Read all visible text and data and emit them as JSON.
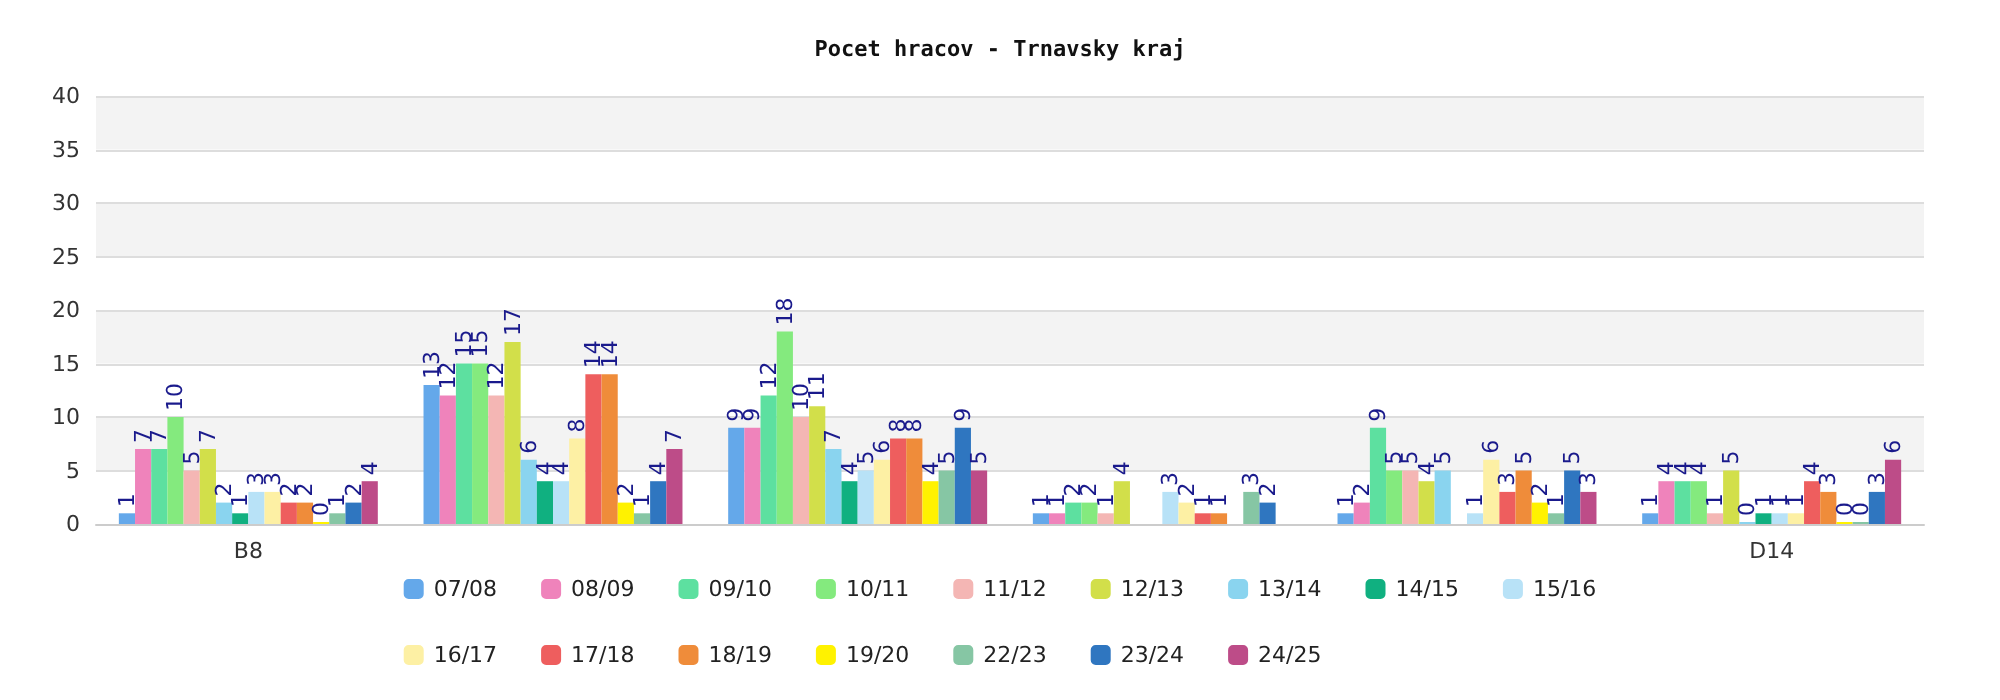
{
  "chart_data": {
    "type": "bar",
    "title": "Pocet hracov - Trnavsky kraj",
    "categories": [
      "B8",
      null,
      null,
      null,
      null,
      "D14"
    ],
    "ylim": [
      0,
      40
    ],
    "yticks": [
      0,
      5,
      10,
      15,
      20,
      25,
      30,
      35,
      40
    ],
    "grid": "y",
    "legend": "bottom",
    "data_labels": true,
    "series": [
      {
        "name": "07/08",
        "color": "#64a8ea",
        "values": [
          1,
          13,
          9,
          1,
          1,
          1
        ]
      },
      {
        "name": "08/09",
        "color": "#ef83bb",
        "values": [
          7,
          12,
          9,
          1,
          2,
          4
        ]
      },
      {
        "name": "09/10",
        "color": "#5de0a0",
        "values": [
          7,
          15,
          12,
          2,
          9,
          4
        ]
      },
      {
        "name": "10/11",
        "color": "#84ea7e",
        "values": [
          10,
          15,
          18,
          2,
          5,
          4
        ]
      },
      {
        "name": "11/12",
        "color": "#f4b6b4",
        "values": [
          5,
          12,
          10,
          1,
          5,
          1
        ]
      },
      {
        "name": "12/13",
        "color": "#d2df4a",
        "values": [
          7,
          17,
          11,
          4,
          4,
          5
        ]
      },
      {
        "name": "13/14",
        "color": "#8ad4ef",
        "values": [
          2,
          6,
          7,
          null,
          5,
          0
        ]
      },
      {
        "name": "14/15",
        "color": "#10b080",
        "values": [
          1,
          4,
          4,
          null,
          null,
          1
        ]
      },
      {
        "name": "15/16",
        "color": "#b8e2f7",
        "values": [
          3,
          4,
          5,
          3,
          1,
          1
        ]
      },
      {
        "name": "16/17",
        "color": "#fdf0a4",
        "values": [
          3,
          8,
          6,
          2,
          6,
          1
        ]
      },
      {
        "name": "17/18",
        "color": "#ee5e5e",
        "values": [
          2,
          14,
          8,
          1,
          3,
          4
        ]
      },
      {
        "name": "18/19",
        "color": "#ef8c3a",
        "values": [
          2,
          14,
          8,
          1,
          5,
          3
        ]
      },
      {
        "name": "19/20",
        "color": "#fff200",
        "values": [
          0,
          2,
          4,
          null,
          2,
          0
        ]
      },
      {
        "name": "22/23",
        "color": "#86c6a4",
        "values": [
          1,
          1,
          5,
          3,
          1,
          0
        ]
      },
      {
        "name": "23/24",
        "color": "#2f76c0",
        "values": [
          2,
          4,
          9,
          2,
          5,
          3
        ]
      },
      {
        "name": "24/25",
        "color": "#bd4c88",
        "values": [
          4,
          7,
          5,
          null,
          3,
          6
        ]
      }
    ]
  }
}
